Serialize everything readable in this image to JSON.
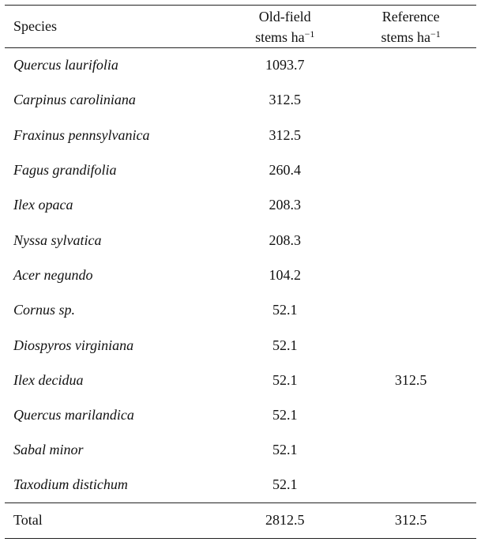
{
  "table": {
    "headers": {
      "species": "Species",
      "old_field_line1": "Old-field",
      "old_field_line2": "stems ha",
      "old_field_sup": "−1",
      "reference_line1": "Reference",
      "reference_line2": "stems ha",
      "reference_sup": "−1"
    },
    "rows": [
      {
        "species": "Quercus laurifolia",
        "old_field": "1093.7",
        "reference": ""
      },
      {
        "species": "Carpinus caroliniana",
        "old_field": "312.5",
        "reference": ""
      },
      {
        "species": "Fraxinus pennsylvanica",
        "old_field": "312.5",
        "reference": ""
      },
      {
        "species": "Fagus grandifolia",
        "old_field": "260.4",
        "reference": ""
      },
      {
        "species": "Ilex opaca",
        "old_field": "208.3",
        "reference": ""
      },
      {
        "species": "Nyssa sylvatica",
        "old_field": "208.3",
        "reference": ""
      },
      {
        "species": "Acer negundo",
        "old_field": "104.2",
        "reference": ""
      },
      {
        "species": "Cornus sp.",
        "old_field": "52.1",
        "reference": ""
      },
      {
        "species": "Diospyros virginiana",
        "old_field": "52.1",
        "reference": ""
      },
      {
        "species": "Ilex decidua",
        "old_field": "52.1",
        "reference": "312.5"
      },
      {
        "species": "Quercus marilandica",
        "old_field": "52.1",
        "reference": ""
      },
      {
        "species": "Sabal minor",
        "old_field": "52.1",
        "reference": ""
      },
      {
        "species": "Taxodium distichum",
        "old_field": "52.1",
        "reference": ""
      }
    ],
    "total": {
      "label": "Total",
      "old_field": "2812.5",
      "reference": "312.5"
    }
  }
}
